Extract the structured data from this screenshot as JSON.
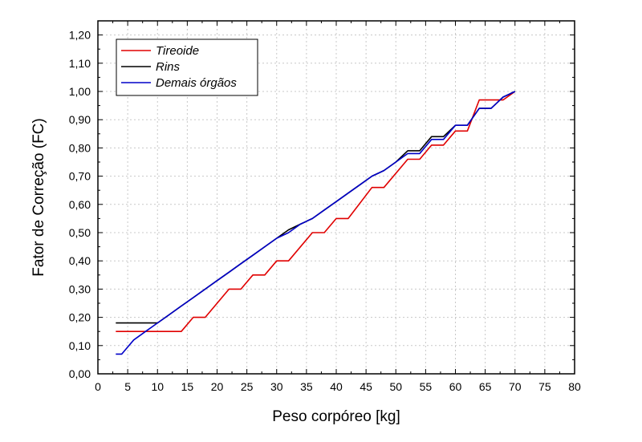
{
  "chart_data": {
    "type": "line",
    "xlabel": "Peso corpóreo [kg]",
    "ylabel": "Fator de Correção (FC)",
    "xlim": [
      0,
      80
    ],
    "ylim": [
      0,
      1.25
    ],
    "xticks": [
      0,
      5,
      10,
      15,
      20,
      25,
      30,
      35,
      40,
      45,
      50,
      55,
      60,
      65,
      70,
      75,
      80
    ],
    "xtick_labels": [
      "0",
      "5",
      "10",
      "15",
      "20",
      "25",
      "30",
      "35",
      "40",
      "45",
      "50",
      "55",
      "60",
      "65",
      "70",
      "75",
      "80"
    ],
    "yticks": [
      0,
      0.1,
      0.2,
      0.3,
      0.4,
      0.5,
      0.6,
      0.7,
      0.8,
      0.9,
      1.0,
      1.1,
      1.2
    ],
    "ytick_labels": [
      "0,00",
      "0,10",
      "0,20",
      "0,30",
      "0,40",
      "0,50",
      "0,60",
      "0,70",
      "0,80",
      "0,90",
      "1,00",
      "1,10",
      "1,20"
    ],
    "grid": true,
    "legend_position": "top-left",
    "series": [
      {
        "name": "Tireoide",
        "color": "#e00000",
        "x": [
          3,
          14,
          16,
          18,
          22,
          24,
          26,
          28,
          30,
          32,
          36,
          38,
          40,
          42,
          46,
          48,
          52,
          54,
          56,
          58,
          60,
          62,
          64,
          68,
          70
        ],
        "y": [
          0.15,
          0.15,
          0.2,
          0.2,
          0.3,
          0.3,
          0.35,
          0.35,
          0.4,
          0.4,
          0.5,
          0.5,
          0.55,
          0.55,
          0.66,
          0.66,
          0.76,
          0.76,
          0.81,
          0.81,
          0.86,
          0.86,
          0.97,
          0.97,
          1.0
        ]
      },
      {
        "name": "Rins",
        "color": "#000000",
        "x": [
          3,
          10,
          12,
          14,
          16,
          18,
          20,
          22,
          24,
          26,
          28,
          30,
          32,
          34,
          36,
          38,
          40,
          42,
          44,
          46,
          48,
          50,
          52,
          54,
          56,
          58,
          60,
          62,
          64,
          66,
          68,
          70
        ],
        "y": [
          0.18,
          0.18,
          0.21,
          0.24,
          0.27,
          0.3,
          0.33,
          0.36,
          0.39,
          0.42,
          0.45,
          0.48,
          0.51,
          0.53,
          0.55,
          0.58,
          0.61,
          0.64,
          0.67,
          0.7,
          0.72,
          0.75,
          0.79,
          0.79,
          0.84,
          0.84,
          0.88,
          0.88,
          0.94,
          0.94,
          0.98,
          1.0
        ]
      },
      {
        "name": "Demais órgãos",
        "color": "#0000c8",
        "x": [
          3,
          4,
          6,
          8,
          10,
          12,
          14,
          16,
          18,
          20,
          22,
          24,
          26,
          28,
          30,
          32,
          34,
          36,
          38,
          40,
          42,
          44,
          46,
          48,
          50,
          52,
          54,
          56,
          58,
          60,
          62,
          64,
          66,
          68,
          70
        ],
        "y": [
          0.07,
          0.07,
          0.12,
          0.15,
          0.18,
          0.21,
          0.24,
          0.27,
          0.3,
          0.33,
          0.36,
          0.39,
          0.42,
          0.45,
          0.48,
          0.5,
          0.53,
          0.55,
          0.58,
          0.61,
          0.64,
          0.67,
          0.7,
          0.72,
          0.75,
          0.78,
          0.78,
          0.83,
          0.83,
          0.88,
          0.88,
          0.94,
          0.94,
          0.98,
          1.0
        ]
      }
    ]
  }
}
